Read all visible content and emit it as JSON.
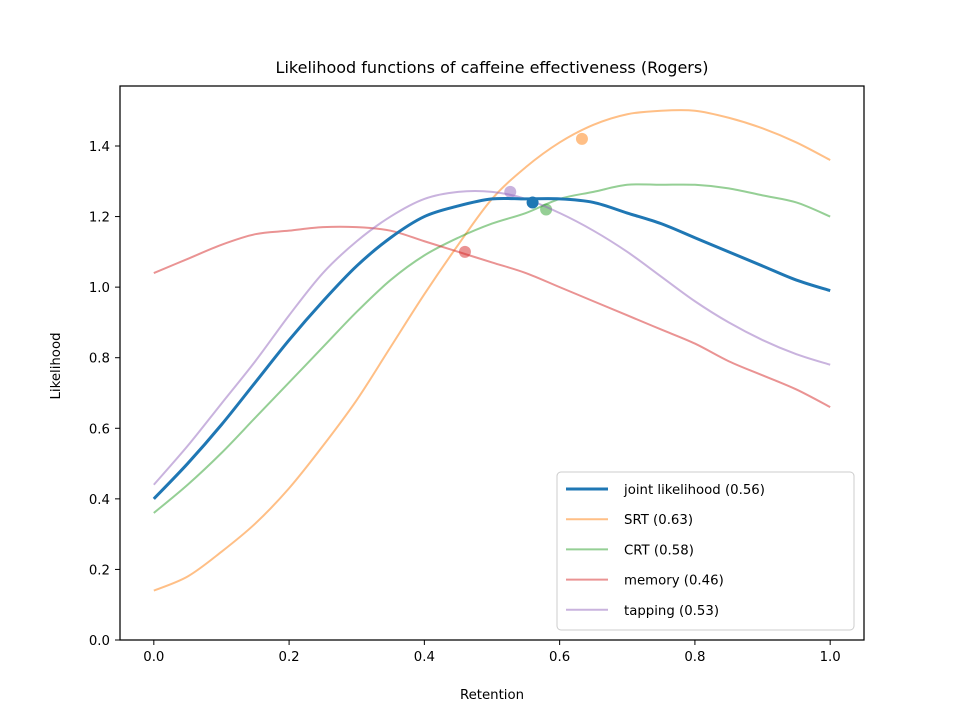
{
  "chart_data": {
    "type": "line",
    "title": "Likelihood functions of caffeine effectiveness (Rogers)",
    "xlabel": "Retention",
    "ylabel": "Likelihood",
    "xlim": [
      -0.05,
      1.05
    ],
    "ylim": [
      0,
      1.57
    ],
    "xticks": [
      0.0,
      0.2,
      0.4,
      0.6,
      0.8,
      1.0
    ],
    "xtick_labels": [
      "0.0",
      "0.2",
      "0.4",
      "0.6",
      "0.8",
      "1.0"
    ],
    "yticks": [
      0.0,
      0.2,
      0.4,
      0.6,
      0.8,
      1.0,
      1.2,
      1.4
    ],
    "ytick_labels": [
      "0.0",
      "0.2",
      "0.4",
      "0.6",
      "0.8",
      "1.0",
      "1.2",
      "1.4"
    ],
    "grid": false,
    "legend_position": "lower-right",
    "x": [
      0.0,
      0.05,
      0.1,
      0.15,
      0.2,
      0.25,
      0.3,
      0.35,
      0.4,
      0.45,
      0.5,
      0.55,
      0.6,
      0.65,
      0.7,
      0.75,
      0.8,
      0.85,
      0.9,
      0.95,
      1.0
    ],
    "series": [
      {
        "name": "joint likelihood (0.56)",
        "color": "#1f77b4",
        "emphasis": true,
        "values": [
          0.4,
          0.5,
          0.61,
          0.73,
          0.85,
          0.96,
          1.06,
          1.14,
          1.2,
          1.23,
          1.25,
          1.25,
          1.25,
          1.24,
          1.21,
          1.18,
          1.14,
          1.1,
          1.06,
          1.02,
          0.99
        ],
        "marker": {
          "x": 0.56,
          "y": 1.24
        }
      },
      {
        "name": "SRT (0.63)",
        "color": "#ff7f0e",
        "values": [
          0.14,
          0.18,
          0.25,
          0.33,
          0.43,
          0.55,
          0.68,
          0.83,
          0.98,
          1.12,
          1.25,
          1.34,
          1.41,
          1.46,
          1.49,
          1.5,
          1.5,
          1.48,
          1.45,
          1.41,
          1.36
        ],
        "marker": {
          "x": 0.633,
          "y": 1.42
        }
      },
      {
        "name": "CRT (0.58)",
        "color": "#2ca02c",
        "values": [
          0.36,
          0.44,
          0.53,
          0.63,
          0.73,
          0.83,
          0.93,
          1.02,
          1.09,
          1.14,
          1.18,
          1.21,
          1.25,
          1.27,
          1.29,
          1.29,
          1.29,
          1.28,
          1.26,
          1.24,
          1.2
        ],
        "marker": {
          "x": 0.58,
          "y": 1.22
        }
      },
      {
        "name": "memory (0.46)",
        "color": "#d62728",
        "values": [
          1.04,
          1.08,
          1.12,
          1.15,
          1.16,
          1.17,
          1.17,
          1.16,
          1.13,
          1.1,
          1.07,
          1.04,
          1.0,
          0.96,
          0.92,
          0.88,
          0.84,
          0.79,
          0.75,
          0.71,
          0.66
        ],
        "marker": {
          "x": 0.46,
          "y": 1.1
        }
      },
      {
        "name": "tapping (0.53)",
        "color": "#9467bd",
        "values": [
          0.44,
          0.55,
          0.67,
          0.79,
          0.92,
          1.04,
          1.13,
          1.2,
          1.25,
          1.27,
          1.27,
          1.25,
          1.21,
          1.16,
          1.1,
          1.03,
          0.96,
          0.9,
          0.85,
          0.81,
          0.78
        ],
        "marker": {
          "x": 0.527,
          "y": 1.27
        }
      }
    ]
  }
}
